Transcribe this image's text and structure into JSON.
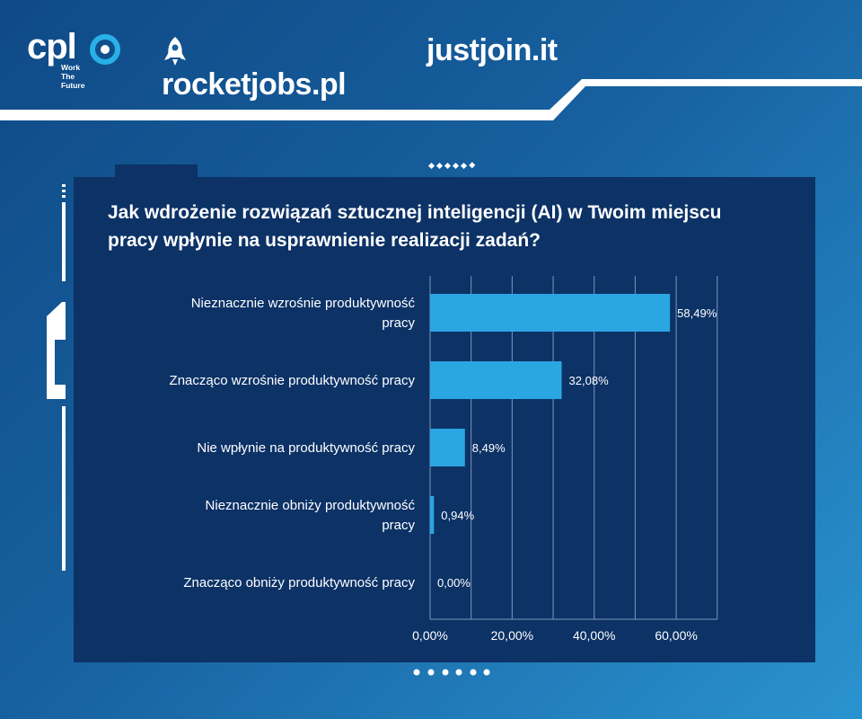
{
  "logos": {
    "cpl_word": "cpl",
    "cpl_tagline": "Work The Future",
    "rocketjobs": "rocketjobs.pl",
    "justjoin": "justjoin.it"
  },
  "colors": {
    "background": "#17609f",
    "panel": "#0c3266",
    "bar": "#2aa6e2",
    "grid": "#7f97b8",
    "text": "#ffffff"
  },
  "chart_data": {
    "type": "bar",
    "orientation": "horizontal",
    "title": "Jak wdrożenie rozwiązań sztucznej inteligencji (AI) w Twoim miejscu pracy wpłynie na usprawnienie realizacji zadań?",
    "categories": [
      "Nieznacznie wzrośnie produktywność pracy",
      "Znacząco wzrośnie produktywność pracy",
      "Nie wpłynie na produktywność pracy",
      "Nieznacznie obniży produktywność pracy",
      "Znacząco obniży produktywność pracy"
    ],
    "category_lines": [
      [
        "Nieznacznie wzrośnie produktywność",
        "pracy"
      ],
      [
        "Znacząco wzrośnie produktywność pracy"
      ],
      [
        "Nie wpłynie na produktywność pracy"
      ],
      [
        "Nieznacznie obniży produktywność",
        "pracy"
      ],
      [
        "Znacząco obniży produktywność pracy"
      ]
    ],
    "values": [
      58.49,
      32.08,
      8.49,
      0.94,
      0.0
    ],
    "value_labels": [
      "58,49%",
      "32,08%",
      "8,49%",
      "0,94%",
      "0,00%"
    ],
    "xlim": [
      0,
      70
    ],
    "xticks": [
      0,
      20,
      40,
      60
    ],
    "xtick_labels": [
      "0,00%",
      "20,00%",
      "40,00%",
      "60,00%"
    ],
    "grid": true,
    "legend": "none"
  }
}
